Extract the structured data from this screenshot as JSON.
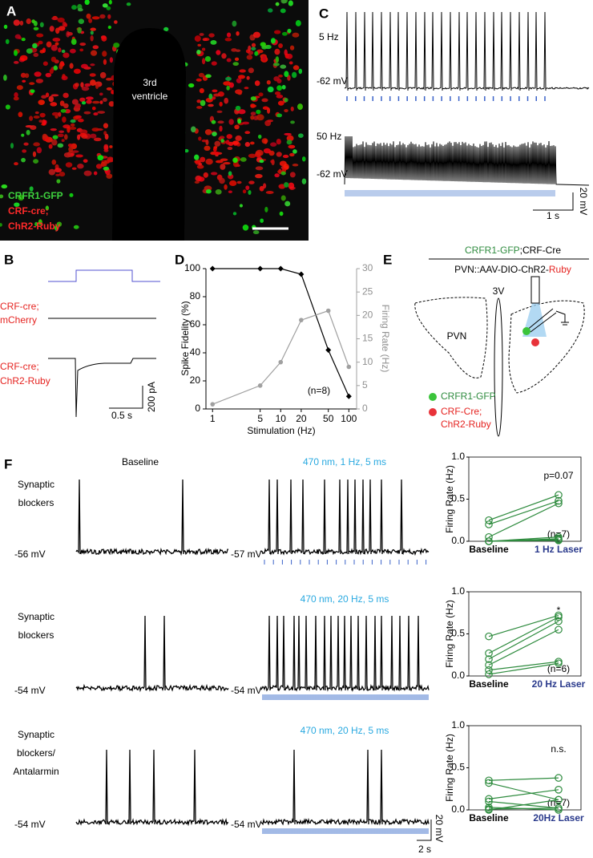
{
  "panel_a": {
    "label": "A",
    "ventricle": [
      "3rd",
      "ventricle"
    ],
    "legend": [
      "CRFR1-GFP",
      "CRF-cre;",
      "ChR2-Ruby"
    ]
  },
  "panel_b": {
    "label": "B",
    "mcherry": [
      "CRF-cre;",
      "mCherry"
    ],
    "ruby": [
      "CRF-cre;",
      "ChR2-Ruby"
    ],
    "scale_y": "200 pA",
    "scale_x": "0.5 s"
  },
  "panel_c": {
    "label": "C",
    "top_freq": "5 Hz",
    "top_vm": "-62 mV",
    "bottom_freq": "50 Hz",
    "bottom_vm": "-62 mV",
    "scale_y": "20 mV",
    "scale_x": "1 s"
  },
  "panel_d": {
    "label": "D"
  },
  "panel_e": {
    "label": "E",
    "header_top": [
      "CRFR1-GFP",
      ";CRF-Cre"
    ],
    "header_bottom": [
      "PVN::AAV-DIO-ChR2-",
      "Ruby"
    ],
    "v3": "3V",
    "pvn": "PVN",
    "legend": [
      "CRFR1-GFP",
      "CRF-Cre;",
      "ChR2-Ruby"
    ]
  },
  "panel_f": {
    "label": "F",
    "baseline_title": "Baseline",
    "scale_y": "20 mV",
    "scale_x": "2 s",
    "rows": [
      {
        "condition": [
          "Synaptic",
          "blockers"
        ],
        "baseline_vm": "-56 mV",
        "stim_title": "470 nm, 1 Hz, 5 ms",
        "stim_vm": "-57 mV"
      },
      {
        "condition": [
          "Synaptic",
          "blockers"
        ],
        "baseline_vm": "-54 mV",
        "stim_title": "470 nm, 20 Hz, 5 ms",
        "stim_vm": "-54 mV"
      },
      {
        "condition": [
          "Synaptic",
          "blockers/",
          "Antalarmin"
        ],
        "baseline_vm": "-54 mV",
        "stim_title": "470 nm, 20 Hz, 5 ms",
        "stim_vm": "-54 mV"
      }
    ]
  },
  "chart_data": [
    {
      "type": "line",
      "x": [
        1,
        5,
        10,
        20,
        50,
        100
      ],
      "xlim": [
        0.8,
        130
      ],
      "xticks": [
        1,
        5,
        10,
        20,
        50,
        100
      ],
      "log_x": true,
      "xlabel": "Stimulation (Hz)",
      "ylabel": "Spike Fidelity (%)",
      "y2label": "Firing Rate (Hz)",
      "ylim": [
        0,
        100
      ],
      "yticks": [
        0,
        20,
        40,
        60,
        80,
        100
      ],
      "y2lim": [
        0,
        30
      ],
      "y2ticks": [
        0,
        5,
        10,
        15,
        20,
        25,
        30
      ],
      "annotation": "(n=8)",
      "series": [
        {
          "color": "#000000",
          "values": [
            100,
            100,
            100,
            96,
            42,
            9
          ]
        },
        {
          "color": "#a0a0a0",
          "axis": "y2",
          "values": [
            1,
            5,
            10,
            19,
            21,
            9
          ]
        }
      ]
    },
    {
      "type": "paired",
      "ylabel": "Firing Rate (Hz)",
      "categories": [
        "Baseline",
        "1 Hz Laser"
      ],
      "ylim": [
        0,
        1
      ],
      "yticks": [
        {
          "value": 0,
          "label": "0.0"
        },
        {
          "value": 0.5,
          "label": "0.5"
        },
        {
          "value": 1,
          "label": "1.0"
        }
      ],
      "annotation": "p=0.07",
      "n": "(n=7)",
      "color": "#2e8b3e",
      "series": [
        {
          "values": [
            0.25,
            0.55
          ]
        },
        {
          "values": [
            0.2,
            0.48
          ]
        },
        {
          "values": [
            0.05,
            0.45
          ]
        },
        {
          "values": [
            0,
            0.05
          ]
        },
        {
          "values": [
            0,
            0.03
          ]
        },
        {
          "values": [
            0,
            0.02
          ]
        },
        {
          "values": [
            0,
            0.01
          ]
        }
      ]
    },
    {
      "type": "paired",
      "ylabel": "Firing Rate (Hz)",
      "categories": [
        "Baseline",
        "20 Hz Laser"
      ],
      "ylim": [
        0,
        1
      ],
      "yticks": [
        {
          "value": 0,
          "label": "0.0"
        },
        {
          "value": 0.5,
          "label": "0.5"
        },
        {
          "value": 1,
          "label": "1.0"
        }
      ],
      "annotation": "*",
      "n": "(n=6)",
      "color": "#2e8b3e",
      "series": [
        {
          "values": [
            0.47,
            0.72
          ]
        },
        {
          "values": [
            0.27,
            0.7
          ]
        },
        {
          "values": [
            0.2,
            0.65
          ]
        },
        {
          "values": [
            0.13,
            0.55
          ]
        },
        {
          "values": [
            0.07,
            0.17
          ]
        },
        {
          "values": [
            0.02,
            0.15
          ]
        }
      ]
    },
    {
      "type": "paired",
      "ylabel": "Firing Rate (Hz)",
      "categories": [
        "Baseline",
        "20Hz Laser"
      ],
      "ylim": [
        0,
        1
      ],
      "yticks": [
        {
          "value": 0,
          "label": "0.0"
        },
        {
          "value": 0.5,
          "label": "0.5"
        },
        {
          "value": 1,
          "label": "1.0"
        }
      ],
      "annotation": "n.s.",
      "n": "(n=7)",
      "color": "#2e8b3e",
      "series": [
        {
          "values": [
            0.35,
            0.38
          ]
        },
        {
          "values": [
            0.32,
            0.12
          ]
        },
        {
          "values": [
            0.13,
            0.24
          ]
        },
        {
          "values": [
            0.1,
            0.02
          ]
        },
        {
          "values": [
            0.03,
            0
          ]
        },
        {
          "values": [
            0.01,
            0.02
          ]
        },
        {
          "values": [
            0,
            0.12
          ]
        }
      ]
    }
  ]
}
